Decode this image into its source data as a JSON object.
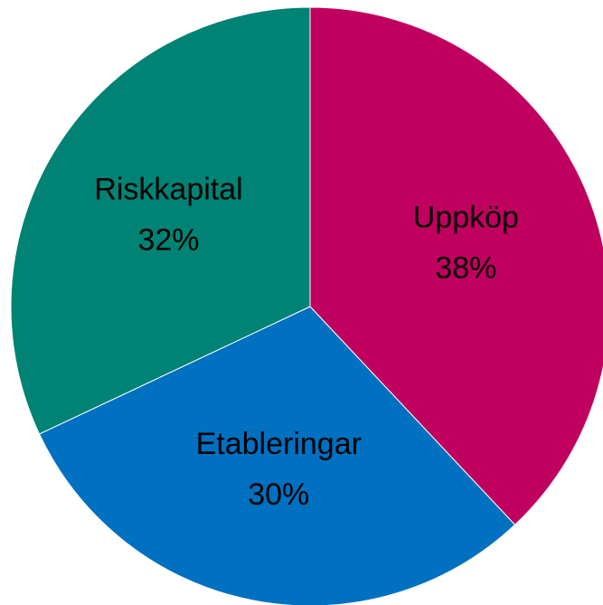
{
  "chart_data": {
    "type": "pie",
    "categories": [
      "Uppköp",
      "Etableringar",
      "Riskkapital"
    ],
    "values": [
      38,
      30,
      32
    ],
    "value_labels": [
      "38%",
      "30%",
      "32%"
    ],
    "colors": [
      "#c0005f",
      "#0070c0",
      "#008374"
    ]
  }
}
